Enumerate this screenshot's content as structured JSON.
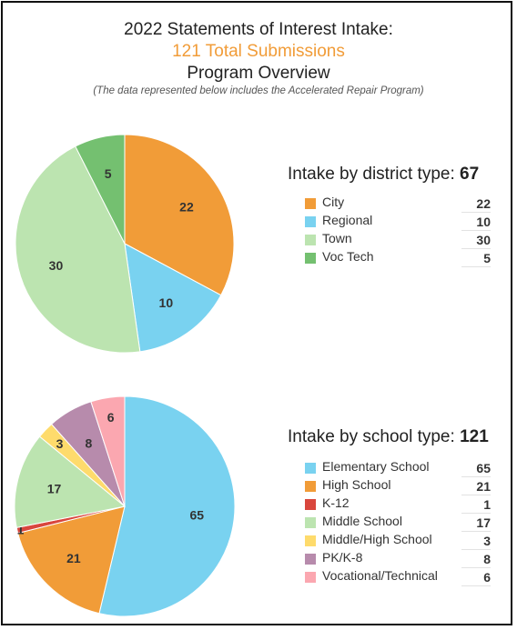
{
  "header": {
    "title": "2022 Statements of Interest Intake:",
    "highlight": "121 Total Submissions",
    "subtitle": "Program Overview",
    "note": "(The data represented below includes the Accelerated Repair Program)"
  },
  "chart_data": [
    {
      "type": "pie",
      "title": "Intake by district type:",
      "total": "67",
      "categories": [
        "City",
        "Regional",
        "Town",
        "Voc Tech"
      ],
      "values": [
        22,
        10,
        30,
        5
      ],
      "colors": [
        "#f19c38",
        "#79d2f0",
        "#bce4b0",
        "#74c070"
      ],
      "legend": "right"
    },
    {
      "type": "pie",
      "title": "Intake by school type:",
      "total": "121",
      "categories": [
        "Elementary School",
        "High School",
        "K-12",
        "Middle School",
        "Middle/High School",
        "PK/K-8",
        "Vocational/Technical"
      ],
      "values": [
        65,
        21,
        1,
        17,
        3,
        8,
        6
      ],
      "colors": [
        "#79d2f0",
        "#f19c38",
        "#d9463d",
        "#bce4b0",
        "#fedb6c",
        "#b78bac",
        "#fba7b0"
      ],
      "legend": "right"
    }
  ]
}
